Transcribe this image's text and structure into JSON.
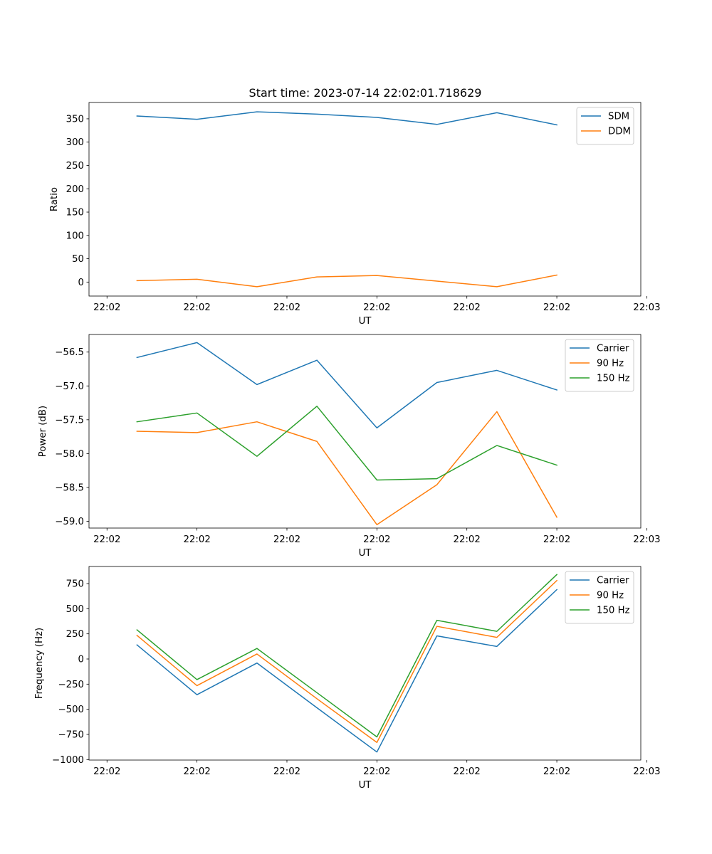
{
  "figure_title": "Start time: 2023-07-14 22:02:01.718629",
  "chart_data": [
    {
      "type": "line",
      "title": "Start time: 2023-07-14 22:02:01.718629",
      "xlabel": "UT",
      "ylabel": "Ratio",
      "x": [
        1,
        2,
        3,
        4,
        5,
        6,
        7,
        8
      ],
      "xlim": [
        0.2,
        9.4
      ],
      "x_ticks": [
        0.5,
        2,
        3.5,
        5,
        6.5,
        8,
        9.5
      ],
      "x_tick_labels": [
        "22:02",
        "22:02",
        "22:02",
        "22:02",
        "22:02",
        "22:02",
        "22:03"
      ],
      "ylim": [
        -30,
        385
      ],
      "y_ticks": [
        0,
        50,
        100,
        150,
        200,
        250,
        300,
        350
      ],
      "y_tick_labels": [
        "0",
        "50",
        "100",
        "150",
        "200",
        "250",
        "300",
        "350"
      ],
      "legend_position": "top-right",
      "series": [
        {
          "name": "SDM",
          "color": "#1f77b4",
          "values": [
            356,
            349,
            365,
            360,
            353,
            338,
            363,
            337
          ]
        },
        {
          "name": "DDM",
          "color": "#ff7f0e",
          "values": [
            3,
            6,
            -10,
            11,
            14,
            2,
            -10,
            15
          ]
        }
      ]
    },
    {
      "type": "line",
      "title": "",
      "xlabel": "UT",
      "ylabel": "Power (dB)",
      "x": [
        1,
        2,
        3,
        4,
        5,
        6,
        7,
        8
      ],
      "xlim": [
        0.2,
        9.4
      ],
      "x_ticks": [
        0.5,
        2,
        3.5,
        5,
        6.5,
        8,
        9.5
      ],
      "x_tick_labels": [
        "22:02",
        "22:02",
        "22:02",
        "22:02",
        "22:02",
        "22:02",
        "22:03"
      ],
      "ylim": [
        -59.1,
        -56.24
      ],
      "y_ticks": [
        -59.0,
        -58.5,
        -58.0,
        -57.5,
        -57.0,
        -56.5
      ],
      "y_tick_labels": [
        "−59.0",
        "−58.5",
        "−58.0",
        "−57.5",
        "−57.0",
        "−56.5"
      ],
      "legend_position": "top-right",
      "series": [
        {
          "name": "Carrier",
          "color": "#1f77b4",
          "values": [
            -56.58,
            -56.36,
            -56.98,
            -56.62,
            -57.62,
            -56.95,
            -56.77,
            -57.06
          ]
        },
        {
          "name": "90 Hz",
          "color": "#ff7f0e",
          "values": [
            -57.67,
            -57.69,
            -57.53,
            -57.82,
            -59.05,
            -58.46,
            -57.38,
            -58.94
          ]
        },
        {
          "name": "150 Hz",
          "color": "#2ca02c",
          "values": [
            -57.53,
            -57.4,
            -58.04,
            -57.3,
            -58.39,
            -58.37,
            -57.88,
            -58.17
          ]
        }
      ]
    },
    {
      "type": "line",
      "title": "",
      "xlabel": "UT",
      "ylabel": "Frequency (Hz)",
      "x": [
        1,
        2,
        3,
        4,
        5,
        6,
        7,
        8
      ],
      "xlim": [
        0.2,
        9.4
      ],
      "x_ticks": [
        0.5,
        2,
        3.5,
        5,
        6.5,
        8,
        9.5
      ],
      "x_tick_labels": [
        "22:02",
        "22:02",
        "22:02",
        "22:02",
        "22:02",
        "22:02",
        "22:03"
      ],
      "ylim": [
        -1005,
        920
      ],
      "y_ticks": [
        -1000,
        -750,
        -500,
        -250,
        0,
        250,
        500,
        750
      ],
      "y_tick_labels": [
        "−1000",
        "−750",
        "−500",
        "−250",
        "0",
        "250",
        "500",
        "750"
      ],
      "legend_position": "top-right",
      "series": [
        {
          "name": "Carrier",
          "color": "#1f77b4",
          "values": [
            140,
            -355,
            -40,
            -485,
            -925,
            230,
            125,
            690
          ]
        },
        {
          "name": "90 Hz",
          "color": "#ff7f0e",
          "values": [
            235,
            -265,
            50,
            -395,
            -830,
            325,
            215,
            780
          ]
        },
        {
          "name": "150 Hz",
          "color": "#2ca02c",
          "values": [
            290,
            -205,
            105,
            -335,
            -775,
            385,
            275,
            840
          ]
        }
      ]
    }
  ]
}
